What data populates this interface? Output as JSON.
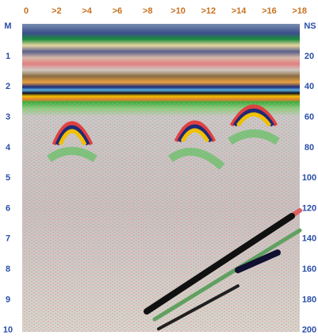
{
  "top_axis": {
    "labels": [
      "0",
      ">2",
      ">4",
      ">6",
      ">8",
      ">10",
      ">12",
      ">14",
      ">16",
      ">18"
    ]
  },
  "left_axis": {
    "unit": "M",
    "labels": [
      "1",
      "2",
      "3",
      "4",
      "5",
      "6",
      "7",
      "8",
      "9",
      "10"
    ]
  },
  "right_axis": {
    "unit": "NS",
    "labels": [
      "20",
      "40",
      "60",
      "80",
      "100",
      "120",
      "140",
      "160",
      "180",
      "200"
    ]
  }
}
